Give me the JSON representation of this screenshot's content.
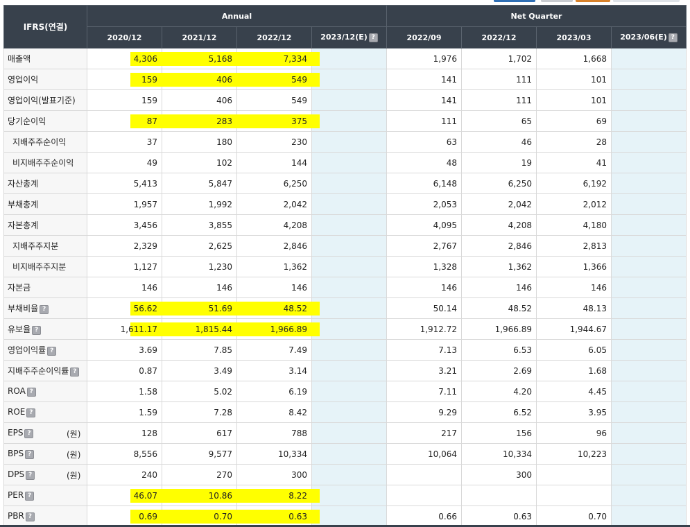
{
  "corner_label": "IFRS(연결)",
  "groups": [
    "Annual",
    "Net Quarter"
  ],
  "periods": [
    "2020/12",
    "2021/12",
    "2022/12",
    "2023/12(E)",
    "2022/09",
    "2022/12",
    "2023/03",
    "2023/06(E)"
  ],
  "help_glyph": "?",
  "colors": {
    "header": "#38414c",
    "estimate_bg": "#e6f3f8",
    "highlight": "#ffff00",
    "label_bg": "#f7f7f7"
  },
  "rows": [
    {
      "label": "매출액",
      "unit": "",
      "help": false,
      "indent": false,
      "highlight": true,
      "values": [
        "4,306",
        "5,168",
        "7,334",
        "",
        "1,976",
        "1,702",
        "1,668",
        ""
      ]
    },
    {
      "label": "영업이익",
      "unit": "",
      "help": false,
      "indent": false,
      "highlight": true,
      "values": [
        "159",
        "406",
        "549",
        "",
        "141",
        "111",
        "101",
        ""
      ]
    },
    {
      "label": "영업이익(발표기준)",
      "unit": "",
      "help": false,
      "indent": false,
      "highlight": false,
      "values": [
        "159",
        "406",
        "549",
        "",
        "141",
        "111",
        "101",
        ""
      ]
    },
    {
      "label": "당기순이익",
      "unit": "",
      "help": false,
      "indent": false,
      "highlight": true,
      "values": [
        "87",
        "283",
        "375",
        "",
        "111",
        "65",
        "69",
        ""
      ]
    },
    {
      "label": "지배주주순이익",
      "unit": "",
      "help": false,
      "indent": true,
      "highlight": false,
      "values": [
        "37",
        "180",
        "230",
        "",
        "63",
        "46",
        "28",
        ""
      ]
    },
    {
      "label": "비지배주주순이익",
      "unit": "",
      "help": false,
      "indent": true,
      "highlight": false,
      "values": [
        "49",
        "102",
        "144",
        "",
        "48",
        "19",
        "41",
        ""
      ]
    },
    {
      "label": "자산총계",
      "unit": "",
      "help": false,
      "indent": false,
      "highlight": false,
      "values": [
        "5,413",
        "5,847",
        "6,250",
        "",
        "6,148",
        "6,250",
        "6,192",
        ""
      ]
    },
    {
      "label": "부채총계",
      "unit": "",
      "help": false,
      "indent": false,
      "highlight": false,
      "values": [
        "1,957",
        "1,992",
        "2,042",
        "",
        "2,053",
        "2,042",
        "2,012",
        ""
      ]
    },
    {
      "label": "자본총계",
      "unit": "",
      "help": false,
      "indent": false,
      "highlight": false,
      "values": [
        "3,456",
        "3,855",
        "4,208",
        "",
        "4,095",
        "4,208",
        "4,180",
        ""
      ]
    },
    {
      "label": "지배주주지분",
      "unit": "",
      "help": false,
      "indent": true,
      "highlight": false,
      "values": [
        "2,329",
        "2,625",
        "2,846",
        "",
        "2,767",
        "2,846",
        "2,813",
        ""
      ]
    },
    {
      "label": "비지배주주지분",
      "unit": "",
      "help": false,
      "indent": true,
      "highlight": false,
      "values": [
        "1,127",
        "1,230",
        "1,362",
        "",
        "1,328",
        "1,362",
        "1,366",
        ""
      ]
    },
    {
      "label": "자본금",
      "unit": "",
      "help": false,
      "indent": false,
      "highlight": false,
      "values": [
        "146",
        "146",
        "146",
        "",
        "146",
        "146",
        "146",
        ""
      ]
    },
    {
      "label": "부채비율",
      "unit": "",
      "help": true,
      "indent": false,
      "highlight": true,
      "values": [
        "56.62",
        "51.69",
        "48.52",
        "",
        "50.14",
        "48.52",
        "48.13",
        ""
      ]
    },
    {
      "label": "유보율",
      "unit": "",
      "help": true,
      "indent": false,
      "highlight": true,
      "values": [
        "1,611.17",
        "1,815.44",
        "1,966.89",
        "",
        "1,912.72",
        "1,966.89",
        "1,944.67",
        ""
      ]
    },
    {
      "label": "영업이익률",
      "unit": "",
      "help": true,
      "indent": false,
      "highlight": false,
      "values": [
        "3.69",
        "7.85",
        "7.49",
        "",
        "7.13",
        "6.53",
        "6.05",
        ""
      ]
    },
    {
      "label": "지배주주순이익률",
      "unit": "",
      "help": true,
      "indent": false,
      "highlight": false,
      "values": [
        "0.87",
        "3.49",
        "3.14",
        "",
        "3.21",
        "2.69",
        "1.68",
        ""
      ]
    },
    {
      "label": "ROA",
      "unit": "",
      "help": true,
      "indent": false,
      "highlight": false,
      "values": [
        "1.58",
        "5.02",
        "6.19",
        "",
        "7.11",
        "4.20",
        "4.45",
        ""
      ]
    },
    {
      "label": "ROE",
      "unit": "",
      "help": true,
      "indent": false,
      "highlight": false,
      "values": [
        "1.59",
        "7.28",
        "8.42",
        "",
        "9.29",
        "6.52",
        "3.95",
        ""
      ]
    },
    {
      "label": "EPS",
      "unit": "(원)",
      "help": true,
      "indent": false,
      "highlight": false,
      "values": [
        "128",
        "617",
        "788",
        "",
        "217",
        "156",
        "96",
        ""
      ]
    },
    {
      "label": "BPS",
      "unit": "(원)",
      "help": true,
      "indent": false,
      "highlight": false,
      "values": [
        "8,556",
        "9,577",
        "10,334",
        "",
        "10,064",
        "10,334",
        "10,223",
        ""
      ]
    },
    {
      "label": "DPS",
      "unit": "(원)",
      "help": true,
      "indent": false,
      "highlight": false,
      "values": [
        "240",
        "270",
        "300",
        "",
        "",
        "300",
        "",
        ""
      ]
    },
    {
      "label": "PER",
      "unit": "",
      "help": true,
      "indent": false,
      "highlight": true,
      "values": [
        "46.07",
        "10.86",
        "8.22",
        "",
        "",
        "",
        "",
        ""
      ]
    },
    {
      "label": "PBR",
      "unit": "",
      "help": true,
      "indent": false,
      "highlight": true,
      "values": [
        "0.69",
        "0.70",
        "0.63",
        "",
        "0.66",
        "0.63",
        "0.70",
        ""
      ]
    }
  ]
}
